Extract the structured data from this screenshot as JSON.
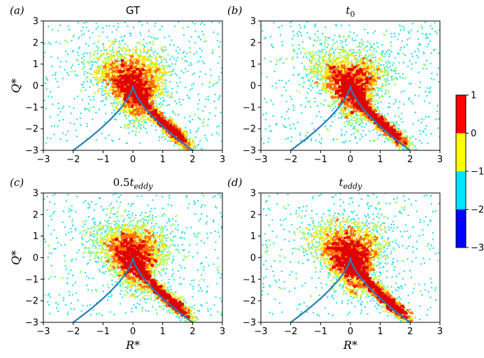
{
  "chart_data": [
    {
      "type": "scatter",
      "panel_label": "(a)",
      "title": "GT",
      "title_font": "sans",
      "xlabel": "",
      "ylabel": "Q*",
      "xlim": [
        -3,
        3
      ],
      "ylim": [
        -3,
        3
      ],
      "xticks": [
        -3,
        -2,
        -1,
        0,
        1,
        2,
        3
      ],
      "yticks": [
        -3,
        -2,
        -1,
        0,
        1,
        2,
        3
      ],
      "seed": 11
    },
    {
      "type": "scatter",
      "panel_label": "(b)",
      "title": "t₀",
      "title_font": "serif",
      "xlabel": "",
      "ylabel": "",
      "xlim": [
        -3,
        3
      ],
      "ylim": [
        -3,
        3
      ],
      "xticks": [
        -3,
        -2,
        -1,
        0,
        1,
        2,
        3
      ],
      "yticks": [
        -3,
        -2,
        -1,
        0,
        1,
        2,
        3
      ],
      "seed": 23
    },
    {
      "type": "scatter",
      "panel_label": "(c)",
      "title": "0.5t_eddy",
      "title_font": "serif",
      "xlabel": "R*",
      "ylabel": "Q*",
      "xlim": [
        -3,
        3
      ],
      "ylim": [
        -3,
        3
      ],
      "xticks": [
        -3,
        -2,
        -1,
        0,
        1,
        2,
        3
      ],
      "yticks": [
        -3,
        -2,
        -1,
        0,
        1,
        2,
        3
      ],
      "seed": 37
    },
    {
      "type": "scatter",
      "panel_label": "(d)",
      "title": "t_eddy",
      "title_font": "serif",
      "xlabel": "R*",
      "ylabel": "",
      "xlim": [
        -3,
        3
      ],
      "ylim": [
        -3,
        3
      ],
      "xticks": [
        -3,
        -2,
        -1,
        0,
        1,
        2,
        3
      ],
      "yticks": [
        -3,
        -2,
        -1,
        0,
        1,
        2,
        3
      ],
      "seed": 53
    }
  ],
  "colorbar": {
    "ticks": [
      "1",
      "0",
      "−1",
      "−2",
      "−3"
    ],
    "levels": [
      1,
      0,
      -1,
      -2,
      -3
    ],
    "colors": [
      "#ff0000",
      "#ffff00",
      "#00e5ff",
      "#0000ff"
    ],
    "gradient": [
      "#ff0000",
      "#ff8000",
      "#ffff00",
      "#80ff80",
      "#00ffff",
      "#0080ff",
      "#0000ff",
      "#000080"
    ]
  },
  "vieillefosse_color": "#2a7db8"
}
